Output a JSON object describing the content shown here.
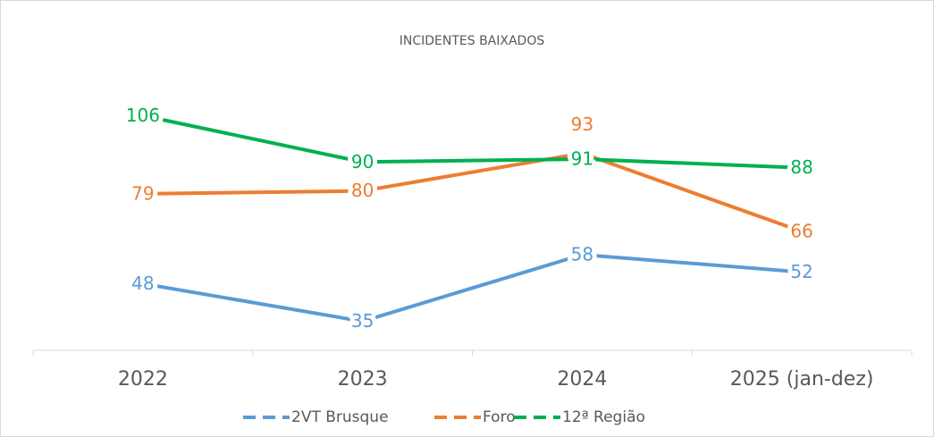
{
  "chart_data": {
    "type": "line",
    "title": "INCIDENTES BAIXADOS",
    "categories": [
      "2022",
      "2023",
      "2024",
      "2025 (jan-dez)"
    ],
    "series": [
      {
        "name": "2VT Brusque",
        "color": "#5b9bd5",
        "values": [
          48,
          35,
          58,
          52
        ]
      },
      {
        "name": "Foro",
        "color": "#ed7d31",
        "values": [
          79,
          80,
          93,
          66
        ]
      },
      {
        "name": "12ª Região",
        "color": "#00b050",
        "values": [
          106,
          90,
          91,
          88
        ]
      }
    ],
    "ylim": [
      25,
      120
    ],
    "legend": "bottom"
  }
}
